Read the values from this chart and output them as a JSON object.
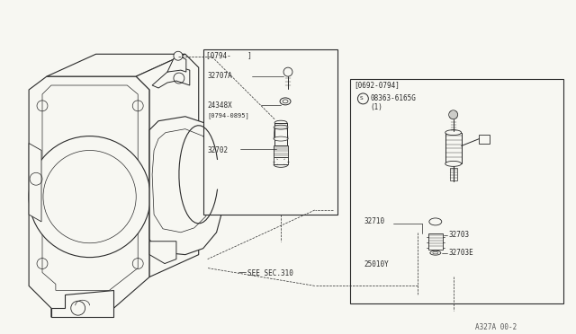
{
  "bg_color": "#f7f7f2",
  "line_color": "#2a2a2a",
  "text_color": "#2a2a2a",
  "fig_width": 6.4,
  "fig_height": 3.72,
  "watermark": "A327A 00-2",
  "box1_label": "[0794-    ]",
  "box2_label": "[0692-0794]",
  "see_sec_label": "SEE SEC.310",
  "parts_b1": [
    "32707A",
    "24348X",
    "[0794-0895]",
    "32702"
  ],
  "parts_b2": [
    "S08363-6165G",
    "(1)",
    "32710",
    "32703",
    "32703E",
    "25010Y"
  ]
}
